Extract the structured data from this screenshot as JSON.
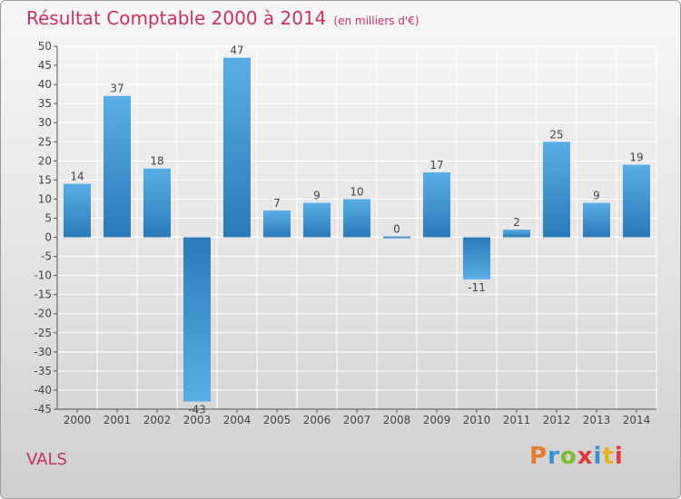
{
  "header": {
    "title": "Résultat Comptable 2000 à 2014",
    "subtitle": "(en milliers d'€)"
  },
  "footer": {
    "commune": "VALS",
    "logo_text": "Proxiti",
    "logo_colors": [
      "#e8792b",
      "#3a8fd0",
      "#7dbb2f",
      "#e03a3a",
      "#3a8fd0",
      "#e8b020",
      "#e03a3a"
    ]
  },
  "colors": {
    "accent": "#c8315d",
    "bar_light": "#5aaee6",
    "bar_dark": "#2a7ab8"
  },
  "chart_data": {
    "type": "bar",
    "title": "Résultat Comptable 2000 à 2014",
    "subtitle": "(en milliers d'€)",
    "categories": [
      "2000",
      "2001",
      "2002",
      "2003",
      "2004",
      "2005",
      "2006",
      "2007",
      "2008",
      "2009",
      "2010",
      "2011",
      "2012",
      "2013",
      "2014"
    ],
    "values": [
      14,
      37,
      18,
      -43,
      47,
      7,
      9,
      10,
      0,
      17,
      -11,
      2,
      25,
      9,
      19
    ],
    "value_labels": [
      "14",
      "37",
      "18",
      "-43",
      "47",
      "7",
      "9",
      "10",
      "0",
      "17",
      "-11",
      "2",
      "25",
      "9",
      "19"
    ],
    "ylim": [
      -45,
      50
    ],
    "yticks": [
      50,
      45,
      40,
      35,
      30,
      25,
      20,
      15,
      10,
      5,
      0,
      -5,
      -10,
      -15,
      -20,
      -25,
      -30,
      -35,
      -40,
      -45
    ],
    "grid": true,
    "legend": "none"
  }
}
